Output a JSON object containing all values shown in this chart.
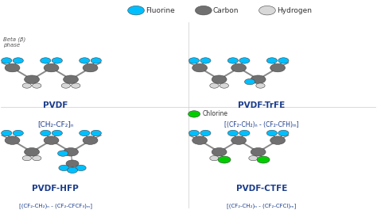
{
  "background_color": "#ffffff",
  "legend_items": [
    {
      "label": "Fluorine",
      "color": "#00bfff"
    },
    {
      "label": "Carbon",
      "color": "#707070"
    },
    {
      "label": "Hydrogen",
      "color": "#d8d8d8"
    }
  ],
  "title_color": "#1a3c8c",
  "chlorine_color": "#00cc00",
  "fluorine_color": "#00bfff",
  "carbon_color": "#707070",
  "hydrogen_color": "#d8d8d8",
  "bond_color": "#888888"
}
